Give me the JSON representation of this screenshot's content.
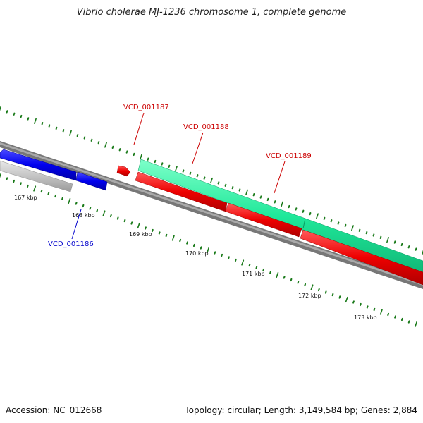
{
  "title": "Vibrio cholerae MJ-1236 chromosome 1, complete genome",
  "footer": {
    "accession": "Accession: NC_012668",
    "summary": "Topology: circular; Length: 3,149,584 bp; Genes: 2,884"
  },
  "colors": {
    "tick_dots": "#1a7a1a",
    "backbone": "#7a7a7a",
    "forward_gene": "#00ff99",
    "reverse_gene": "#ff0000",
    "blue_gene": "#0000ff",
    "gray_gene": "#c8c8c8",
    "label_red": "#cc0000",
    "label_blue": "#0000cc"
  },
  "scale_labels": [
    "167 kbp",
    "168 kbp",
    "169 kbp",
    "170 kbp",
    "171 kbp",
    "172 kbp",
    "173 kbp"
  ],
  "gene_labels": [
    {
      "text": "VCD_001187",
      "color": "red"
    },
    {
      "text": "VCD_001188",
      "color": "red"
    },
    {
      "text": "VCD_001189",
      "color": "red"
    },
    {
      "text": "VCD_001186",
      "color": "blue"
    }
  ]
}
